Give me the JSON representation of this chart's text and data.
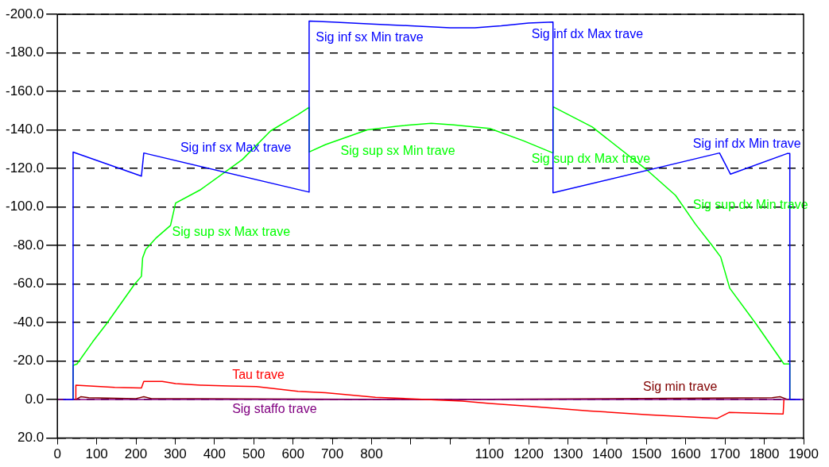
{
  "chart_data": {
    "type": "line",
    "series": [
      {
        "color": "#0000ff",
        "x": [
          15,
          40,
          40,
          214,
          220,
          641,
          641,
          700,
          800,
          900,
          1000,
          1063,
          1130,
          1200,
          1262,
          1262,
          1686,
          1714,
          1858,
          1865,
          1865,
          1892
        ],
        "values": [
          0,
          0,
          -128.5,
          -116,
          -128,
          -107.7,
          -196.5,
          -196,
          -195,
          -194,
          -193,
          -193,
          -194,
          -195.5,
          -196,
          -107.3,
          -128,
          -117,
          -127.7,
          -127.7,
          0,
          0
        ]
      },
      {
        "color": "#00ff00",
        "x": [
          40,
          40,
          50,
          90,
          125,
          196,
          214,
          217,
          225,
          252,
          288,
          301,
          365,
          471,
          543,
          613,
          641,
          641,
          683,
          789,
          868,
          952,
          1009,
          1101,
          1186,
          1262,
          1262,
          1362,
          1504,
          1574,
          1625,
          1667,
          1689,
          1712,
          1780,
          1850,
          1865,
          1865
        ],
        "values": [
          0,
          -17.7,
          -18.5,
          -30,
          -39.3,
          -59.7,
          -64,
          -73.5,
          -78,
          -84,
          -90.4,
          -102,
          -109,
          -124.6,
          -139.5,
          -148,
          -151.7,
          -128.5,
          -132.4,
          -140,
          -142,
          -143.4,
          -142.6,
          -140.7,
          -134.4,
          -128,
          -152,
          -141.5,
          -118.7,
          -106,
          -91,
          -80,
          -74,
          -57.8,
          -39,
          -18.5,
          -18.5,
          0
        ]
      },
      {
        "color": "#ff0000",
        "x": [
          47,
          47,
          146,
          214,
          220,
          267,
          301,
          365,
          437,
          507,
          613,
          683,
          810,
          1031,
          1101,
          1201,
          1356,
          1504,
          1680,
          1710,
          1848,
          1850
        ],
        "values": [
          0,
          -7.5,
          -6.3,
          -6,
          -9.4,
          -9.4,
          -8.3,
          -7.5,
          -7,
          -6.7,
          -4.3,
          -3.5,
          -1.2,
          0.8,
          2,
          3.5,
          5.9,
          7.9,
          9.8,
          6.7,
          7.5,
          0
        ]
      },
      {
        "color": "#800080",
        "x": [
          0,
          1900
        ],
        "values": [
          0,
          0
        ]
      },
      {
        "color": "#800000",
        "x": [
          47,
          60,
          80,
          200,
          220,
          240,
          1000,
          1400,
          1820,
          1840,
          1860
        ],
        "values": [
          0,
          -1.5,
          -1,
          -0.5,
          -1.5,
          -0.5,
          0,
          -0.5,
          -1,
          -1.5,
          0
        ]
      }
    ],
    "xlim": [
      0,
      1900
    ],
    "xticks": [
      0,
      100,
      200,
      300,
      400,
      500,
      600,
      700,
      800,
      {
        "value": 900,
        "label": null
      },
      {
        "value": 1000,
        "label": null
      },
      1100,
      1200,
      1300,
      1400,
      1500,
      1600,
      1700,
      1800,
      1900
    ],
    "ylim": [
      20,
      -200
    ],
    "yticks": [
      {
        "value": -200,
        "label": "-200.0"
      },
      {
        "value": -180,
        "label": "-180.0"
      },
      {
        "value": -160,
        "label": "-160.0"
      },
      {
        "value": -140,
        "label": "-140.0"
      },
      {
        "value": -120,
        "label": "-120.0"
      },
      {
        "value": -100,
        "label": "-100.0"
      },
      {
        "value": -80,
        "label": "-80.0"
      },
      {
        "value": -60,
        "label": "-60.0"
      },
      {
        "value": -40,
        "label": "-40.0"
      },
      {
        "value": -20,
        "label": "-20.0"
      },
      {
        "value": 0,
        "label": "0.0"
      },
      {
        "value": 20,
        "label": "20.0"
      }
    ],
    "grid": "y",
    "legend": false,
    "marker": "none",
    "line_style": "solid",
    "annotations": [
      {
        "text": "Sig inf sx Min trave",
        "x": 650,
        "y": -196
      },
      {
        "text": "Sig inf dx Max trave",
        "x": 1199,
        "y": -195
      },
      {
        "text": "Sig inf sx Max trave",
        "x": 305,
        "y": -122
      },
      {
        "text": "Sig sup sx Min trave",
        "x": 713,
        "y": -134
      },
      {
        "text": "Sig sup dx Max trave",
        "x": 1199,
        "y": -133
      },
      {
        "text": "Sig inf dx Min trave",
        "x": 1610,
        "y": -124
      },
      {
        "text": "Sig sup sx Max trave",
        "x": 284,
        "y": -92
      },
      {
        "text": "Sig sup dx Min trave",
        "x": 1610,
        "y": -95
      },
      {
        "text": "Tau trave",
        "x": 437,
        "y": -7
      },
      {
        "text": "Sig staffo trave",
        "x": 437,
        "y": 0
      },
      {
        "text": "Sig min trave",
        "x": 1483,
        "y": -0.5
      }
    ]
  }
}
